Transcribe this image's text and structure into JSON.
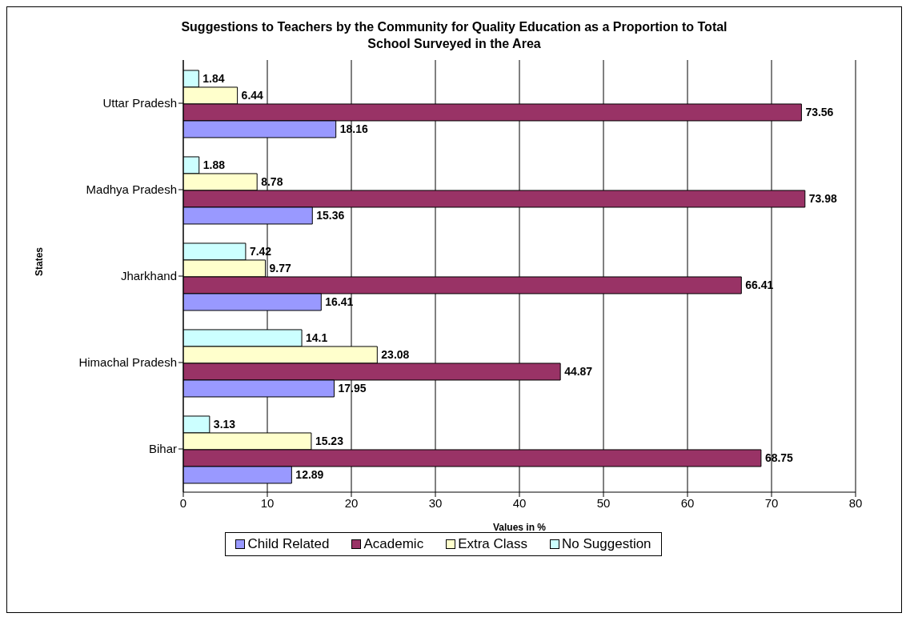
{
  "chart_data": {
    "type": "bar",
    "orientation": "horizontal",
    "title": "Suggestions to Teachers by the Community for Quality Education as a Proportion to Total School Surveyed in the Area",
    "xlabel": "Values in %",
    "ylabel": "States",
    "categories": [
      "Uttar Pradesh",
      "Madhya Pradesh",
      "Jharkhand",
      "Himachal Pradesh",
      "Bihar"
    ],
    "series": [
      {
        "name": "Child Related",
        "color": "#9999ff",
        "values": [
          18.16,
          15.36,
          16.41,
          17.95,
          12.89
        ]
      },
      {
        "name": "Academic",
        "color": "#993366",
        "values": [
          73.56,
          73.98,
          66.41,
          44.87,
          68.75
        ]
      },
      {
        "name": "Extra Class",
        "color": "#ffffcc",
        "values": [
          6.44,
          8.78,
          9.77,
          23.08,
          15.23
        ]
      },
      {
        "name": "No Suggestion",
        "color": "#ccffff",
        "values": [
          1.84,
          1.88,
          7.42,
          14.1,
          3.13
        ]
      }
    ],
    "xlim": [
      0,
      80
    ],
    "xticks": [
      0,
      10,
      20,
      30,
      40,
      50,
      60,
      70,
      80
    ],
    "grid": "x",
    "legend": "bottom",
    "data_labels": true
  }
}
